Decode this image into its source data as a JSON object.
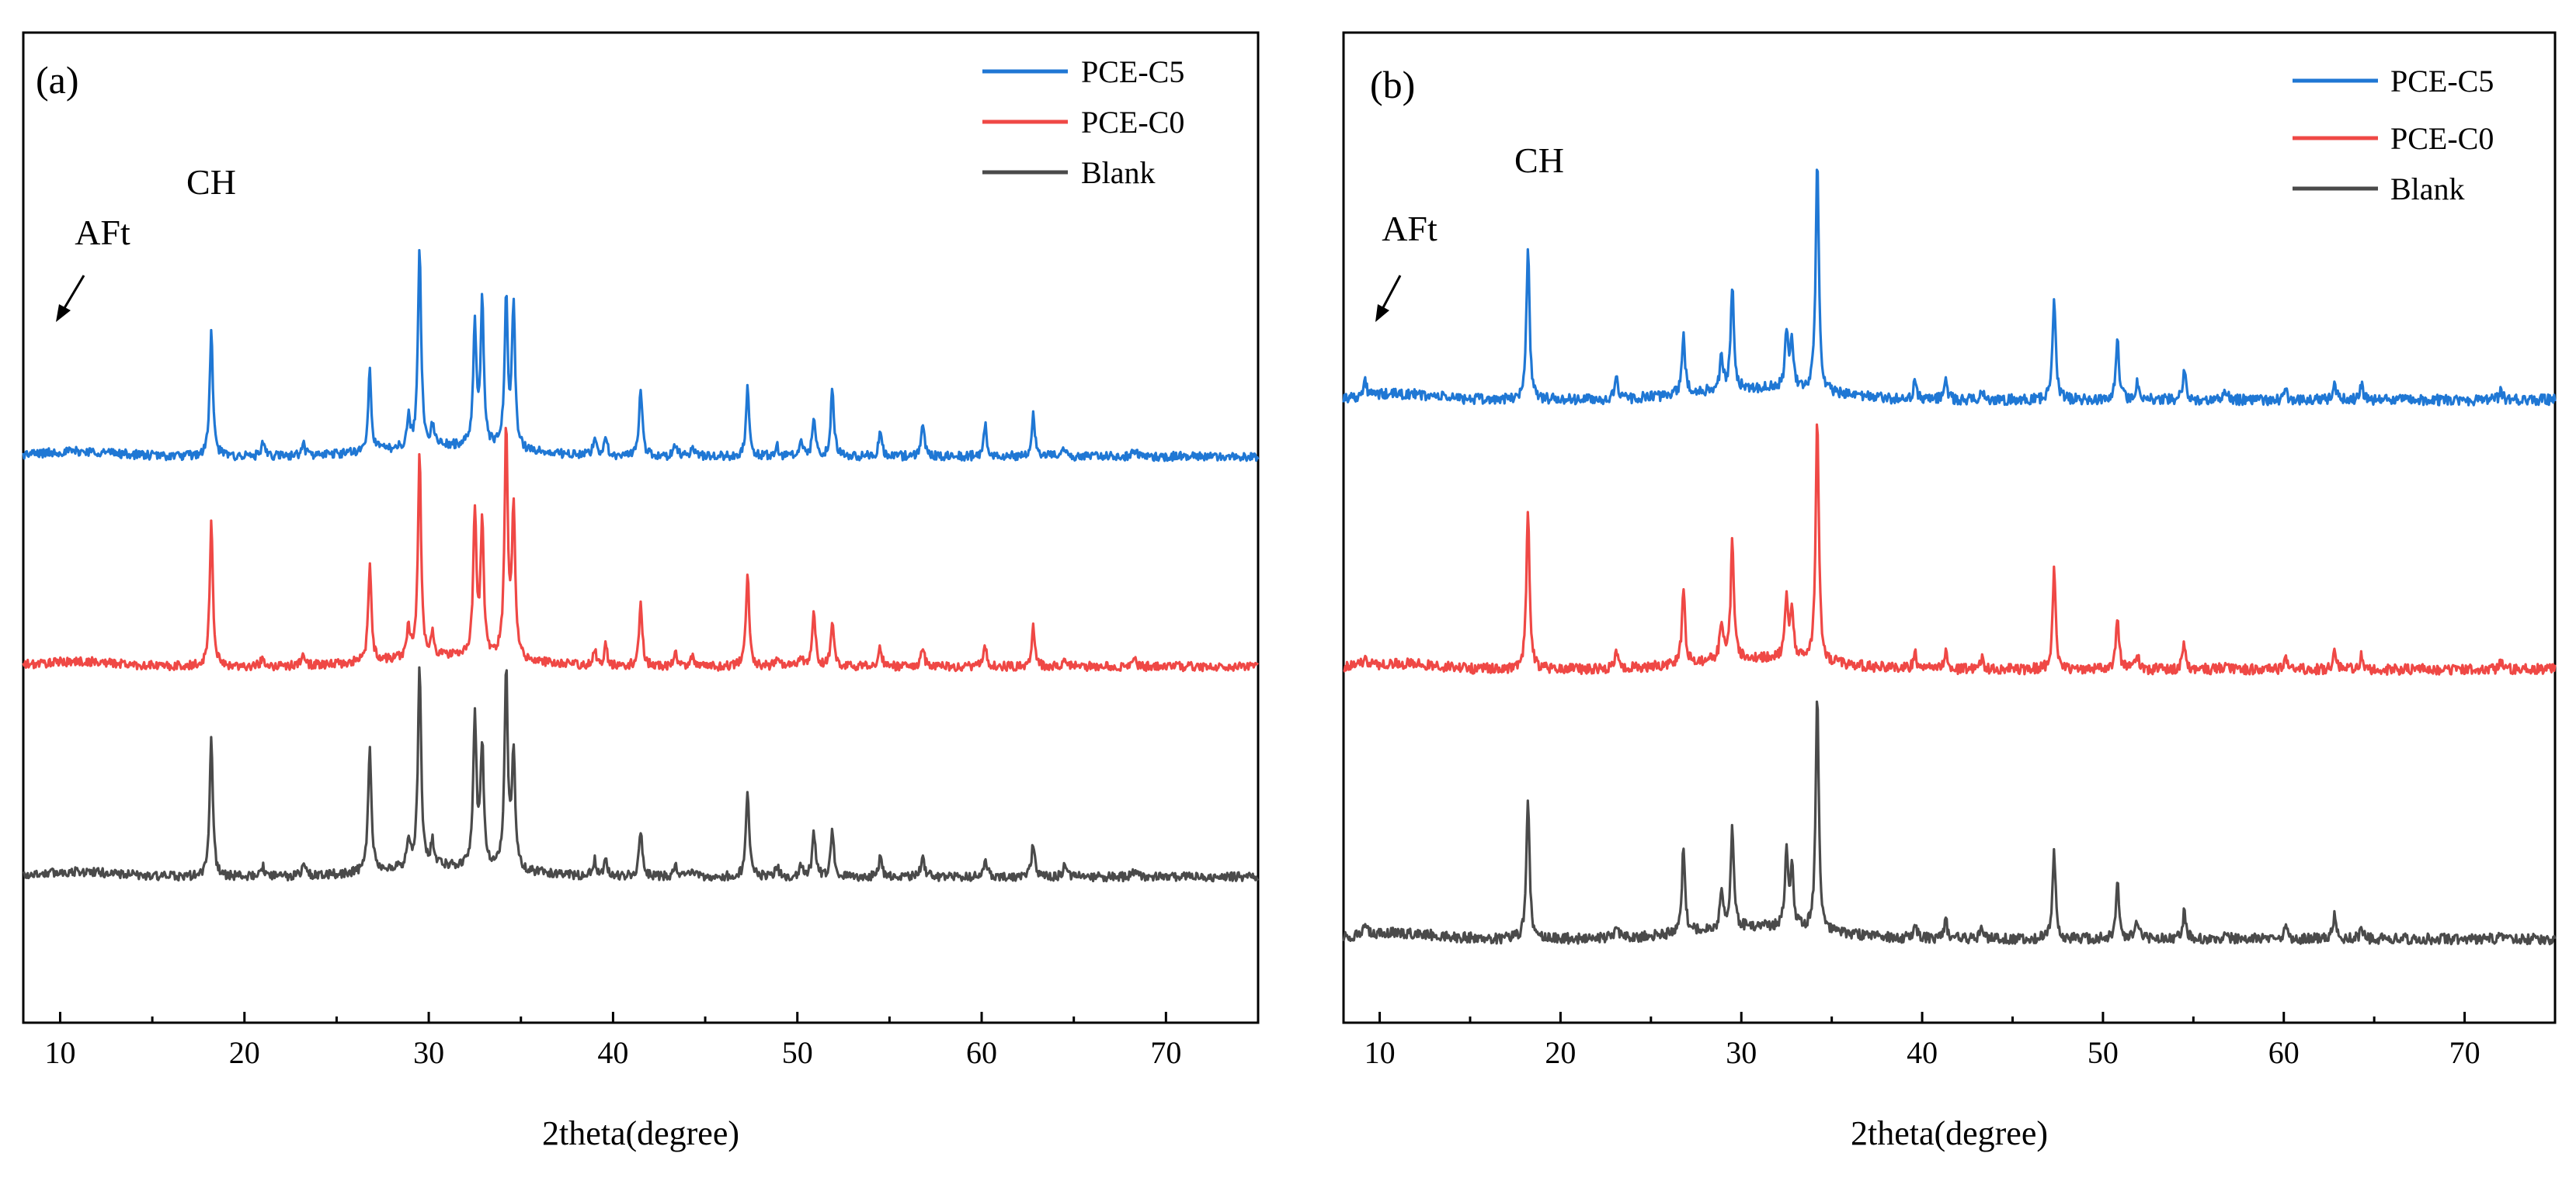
{
  "chart_data": [
    {
      "type": "line",
      "panel_label": "(a)",
      "title": "",
      "xlabel": "2theta(degree)",
      "ylabel": "",
      "xlim": [
        8,
        75
      ],
      "xticks": [
        10,
        20,
        30,
        40,
        50,
        60,
        70
      ],
      "legend": "top-right",
      "offset_step": 1.05,
      "series": [
        {
          "name": "PCE-C5",
          "color": "#1f77d4",
          "offset": 2,
          "peaks": [
            [
              18.2,
              0.62
            ],
            [
              26.8,
              0.4
            ],
            [
              29.5,
              1.0
            ],
            [
              32.5,
              0.6
            ],
            [
              32.9,
              0.72
            ],
            [
              34.2,
              0.75
            ],
            [
              34.6,
              0.72
            ],
            [
              41.5,
              0.33
            ],
            [
              47.3,
              0.34
            ],
            [
              50.9,
              0.18
            ],
            [
              51.9,
              0.34
            ],
            [
              54.5,
              0.12
            ],
            [
              56.8,
              0.17
            ],
            [
              60.2,
              0.15
            ],
            [
              62.8,
              0.22
            ],
            [
              21.0,
              0.06
            ],
            [
              23.2,
              0.06
            ],
            [
              28.9,
              0.14
            ],
            [
              30.2,
              0.1
            ],
            [
              39.0,
              0.08
            ],
            [
              39.6,
              0.1
            ],
            [
              43.4,
              0.06
            ],
            [
              44.3,
              0.05
            ],
            [
              48.9,
              0.05
            ],
            [
              50.2,
              0.06
            ],
            [
              64.5,
              0.04
            ],
            [
              68.3,
              0.03
            ]
          ]
        },
        {
          "name": "PCE-C0",
          "color": "#ef4845",
          "offset": 1,
          "peaks": [
            [
              18.2,
              0.72
            ],
            [
              26.8,
              0.48
            ],
            [
              29.5,
              1.0
            ],
            [
              32.5,
              0.73
            ],
            [
              32.9,
              0.65
            ],
            [
              34.2,
              1.15
            ],
            [
              34.6,
              0.75
            ],
            [
              41.5,
              0.33
            ],
            [
              47.3,
              0.45
            ],
            [
              50.9,
              0.27
            ],
            [
              51.9,
              0.23
            ],
            [
              54.5,
              0.1
            ],
            [
              56.8,
              0.1
            ],
            [
              60.2,
              0.1
            ],
            [
              62.8,
              0.2
            ],
            [
              21.0,
              0.05
            ],
            [
              23.2,
              0.07
            ],
            [
              28.9,
              0.15
            ],
            [
              30.2,
              0.1
            ],
            [
              39.0,
              0.08
            ],
            [
              39.6,
              0.1
            ],
            [
              43.4,
              0.06
            ],
            [
              44.3,
              0.05
            ],
            [
              48.9,
              0.05
            ],
            [
              50.2,
              0.06
            ],
            [
              64.5,
              0.06
            ],
            [
              68.3,
              0.03
            ]
          ]
        },
        {
          "name": "Blank",
          "color": "#4a4a4a",
          "offset": 0,
          "peaks": [
            [
              18.2,
              0.69
            ],
            [
              26.8,
              0.62
            ],
            [
              29.5,
              1.0
            ],
            [
              32.5,
              0.75
            ],
            [
              32.9,
              0.6
            ],
            [
              34.2,
              1.0
            ],
            [
              34.6,
              0.58
            ],
            [
              41.5,
              0.23
            ],
            [
              47.3,
              0.42
            ],
            [
              50.9,
              0.22
            ],
            [
              51.9,
              0.22
            ],
            [
              54.5,
              0.1
            ],
            [
              56.8,
              0.12
            ],
            [
              60.2,
              0.1
            ],
            [
              62.8,
              0.17
            ],
            [
              21.0,
              0.05
            ],
            [
              23.2,
              0.07
            ],
            [
              28.9,
              0.15
            ],
            [
              30.2,
              0.12
            ],
            [
              39.0,
              0.08
            ],
            [
              39.6,
              0.08
            ],
            [
              43.4,
              0.06
            ],
            [
              44.3,
              0.05
            ],
            [
              48.9,
              0.05
            ],
            [
              50.2,
              0.06
            ],
            [
              64.5,
              0.05
            ],
            [
              68.3,
              0.03
            ]
          ]
        }
      ],
      "annotations": [
        {
          "text": "CH",
          "x": 18.2
        },
        {
          "text": "AFt",
          "x": 9.2
        }
      ]
    },
    {
      "type": "line",
      "panel_label": "(b)",
      "title": "",
      "xlabel": "2theta(degree)",
      "ylabel": "",
      "xlim": [
        8,
        75
      ],
      "xticks": [
        10,
        20,
        30,
        40,
        50,
        60,
        70
      ],
      "legend": "top-right",
      "offset_step": 1.15,
      "series": [
        {
          "name": "PCE-C5",
          "color": "#1f77d4",
          "offset": 2,
          "peaks": [
            [
              18.2,
              0.65
            ],
            [
              26.8,
              0.26
            ],
            [
              29.5,
              0.44
            ],
            [
              32.5,
              0.24
            ],
            [
              32.8,
              0.2
            ],
            [
              34.2,
              1.0
            ],
            [
              23.1,
              0.08
            ],
            [
              28.9,
              0.14
            ],
            [
              39.6,
              0.07
            ],
            [
              41.3,
              0.09
            ],
            [
              43.3,
              0.05
            ],
            [
              47.3,
              0.45
            ],
            [
              50.8,
              0.27
            ],
            [
              51.9,
              0.08
            ],
            [
              54.5,
              0.12
            ],
            [
              56.8,
              0.04
            ],
            [
              60.1,
              0.04
            ],
            [
              62.8,
              0.08
            ],
            [
              64.3,
              0.06
            ],
            [
              72.0,
              0.04
            ],
            [
              9.2,
              0.06
            ]
          ]
        },
        {
          "name": "PCE-C0",
          "color": "#ef4845",
          "offset": 1,
          "peaks": [
            [
              18.2,
              0.68
            ],
            [
              26.8,
              0.32
            ],
            [
              29.5,
              0.5
            ],
            [
              32.5,
              0.25
            ],
            [
              32.8,
              0.2
            ],
            [
              34.2,
              1.05
            ],
            [
              23.1,
              0.08
            ],
            [
              28.9,
              0.16
            ],
            [
              39.6,
              0.07
            ],
            [
              41.3,
              0.08
            ],
            [
              43.3,
              0.05
            ],
            [
              47.3,
              0.42
            ],
            [
              50.8,
              0.22
            ],
            [
              51.9,
              0.06
            ],
            [
              54.5,
              0.11
            ],
            [
              56.8,
              0.04
            ],
            [
              60.1,
              0.05
            ],
            [
              62.8,
              0.08
            ],
            [
              64.3,
              0.06
            ],
            [
              72.0,
              0.04
            ],
            [
              9.2,
              0.05
            ]
          ]
        },
        {
          "name": "Blank",
          "color": "#4a4a4a",
          "offset": 0,
          "peaks": [
            [
              18.2,
              0.6
            ],
            [
              26.8,
              0.37
            ],
            [
              29.5,
              0.44
            ],
            [
              32.5,
              0.34
            ],
            [
              32.8,
              0.25
            ],
            [
              34.2,
              1.0
            ],
            [
              23.1,
              0.06
            ],
            [
              28.9,
              0.15
            ],
            [
              39.6,
              0.07
            ],
            [
              41.3,
              0.08
            ],
            [
              43.3,
              0.04
            ],
            [
              47.3,
              0.37
            ],
            [
              50.8,
              0.25
            ],
            [
              51.9,
              0.08
            ],
            [
              54.5,
              0.12
            ],
            [
              56.8,
              0.04
            ],
            [
              60.1,
              0.05
            ],
            [
              62.8,
              0.1
            ],
            [
              64.3,
              0.05
            ],
            [
              72.0,
              0.03
            ],
            [
              9.2,
              0.04
            ]
          ]
        }
      ],
      "annotations": [
        {
          "text": "CH",
          "x": 18.2
        },
        {
          "text": "AFt",
          "x": 9.2
        }
      ]
    }
  ]
}
